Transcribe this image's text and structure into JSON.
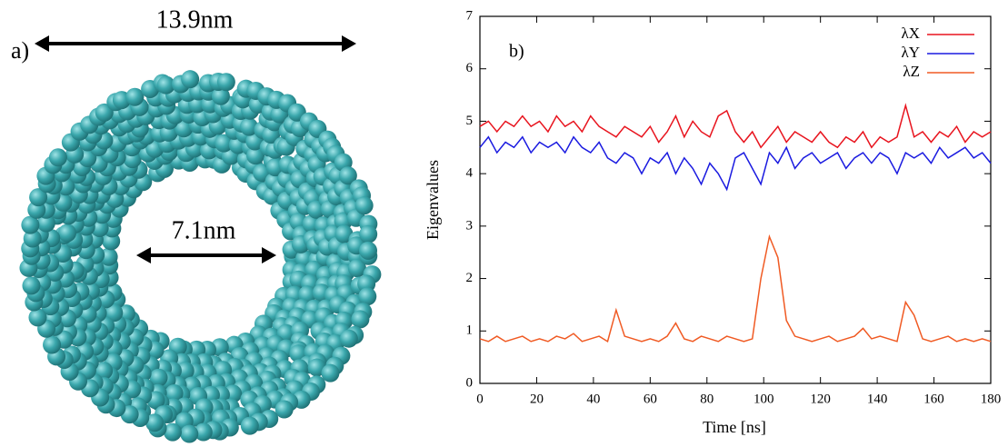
{
  "panel_a": {
    "label": "a)",
    "outer_diameter": "13.9nm",
    "inner_diameter": "7.1nm"
  },
  "chart_data": {
    "type": "line",
    "panel_label": "b)",
    "x_label": "Time [ns]",
    "y_label": "Eigenvalues",
    "xlim": [
      0,
      180
    ],
    "ylim": [
      0,
      7
    ],
    "xticks": [
      0,
      20,
      40,
      60,
      80,
      100,
      120,
      140,
      160,
      180
    ],
    "yticks": [
      0,
      1,
      2,
      3,
      4,
      5,
      6,
      7
    ],
    "legend": "upper right",
    "x": [
      0,
      3,
      6,
      9,
      12,
      15,
      18,
      21,
      24,
      27,
      30,
      33,
      36,
      39,
      42,
      45,
      48,
      51,
      54,
      57,
      60,
      63,
      66,
      69,
      72,
      75,
      78,
      81,
      84,
      87,
      90,
      93,
      96,
      99,
      102,
      105,
      108,
      111,
      114,
      117,
      120,
      123,
      126,
      129,
      132,
      135,
      138,
      141,
      144,
      147,
      150,
      153,
      156,
      159,
      162,
      165,
      168,
      171,
      174,
      177,
      180
    ],
    "series": [
      {
        "name": "λX",
        "color": "#e8141e",
        "values": [
          4.9,
          5.0,
          4.8,
          5.0,
          4.9,
          5.1,
          4.9,
          5.0,
          4.8,
          5.1,
          4.9,
          5.0,
          4.8,
          5.1,
          4.9,
          4.8,
          4.7,
          4.9,
          4.8,
          4.7,
          4.9,
          4.6,
          4.8,
          5.1,
          4.7,
          5.0,
          4.8,
          4.7,
          5.1,
          5.2,
          4.8,
          4.6,
          4.8,
          4.5,
          4.7,
          4.9,
          4.6,
          4.8,
          4.7,
          4.6,
          4.8,
          4.6,
          4.5,
          4.7,
          4.6,
          4.8,
          4.5,
          4.7,
          4.6,
          4.7,
          5.3,
          4.7,
          4.8,
          4.6,
          4.8,
          4.7,
          4.9,
          4.6,
          4.8,
          4.7,
          4.8
        ]
      },
      {
        "name": "λY",
        "color": "#1a1ae0",
        "values": [
          4.5,
          4.7,
          4.4,
          4.6,
          4.5,
          4.7,
          4.4,
          4.6,
          4.5,
          4.6,
          4.4,
          4.7,
          4.5,
          4.4,
          4.6,
          4.3,
          4.2,
          4.4,
          4.3,
          4.0,
          4.3,
          4.2,
          4.4,
          4.0,
          4.3,
          4.1,
          3.8,
          4.2,
          4.0,
          3.7,
          4.3,
          4.4,
          4.1,
          3.8,
          4.4,
          4.2,
          4.5,
          4.1,
          4.3,
          4.4,
          4.2,
          4.3,
          4.4,
          4.1,
          4.3,
          4.4,
          4.2,
          4.4,
          4.3,
          4.0,
          4.4,
          4.3,
          4.4,
          4.2,
          4.5,
          4.3,
          4.4,
          4.5,
          4.3,
          4.4,
          4.2
        ]
      },
      {
        "name": "λZ",
        "color": "#f05a23",
        "values": [
          0.85,
          0.8,
          0.9,
          0.8,
          0.85,
          0.9,
          0.8,
          0.85,
          0.8,
          0.9,
          0.85,
          0.95,
          0.8,
          0.85,
          0.9,
          0.8,
          1.4,
          0.9,
          0.85,
          0.8,
          0.85,
          0.8,
          0.9,
          1.15,
          0.85,
          0.8,
          0.9,
          0.85,
          0.8,
          0.9,
          0.85,
          0.8,
          0.85,
          2.0,
          2.8,
          2.4,
          1.2,
          0.9,
          0.85,
          0.8,
          0.85,
          0.9,
          0.8,
          0.85,
          0.9,
          1.05,
          0.85,
          0.9,
          0.85,
          0.8,
          1.55,
          1.3,
          0.85,
          0.8,
          0.85,
          0.9,
          0.8,
          0.85,
          0.8,
          0.85,
          0.8
        ]
      }
    ]
  }
}
